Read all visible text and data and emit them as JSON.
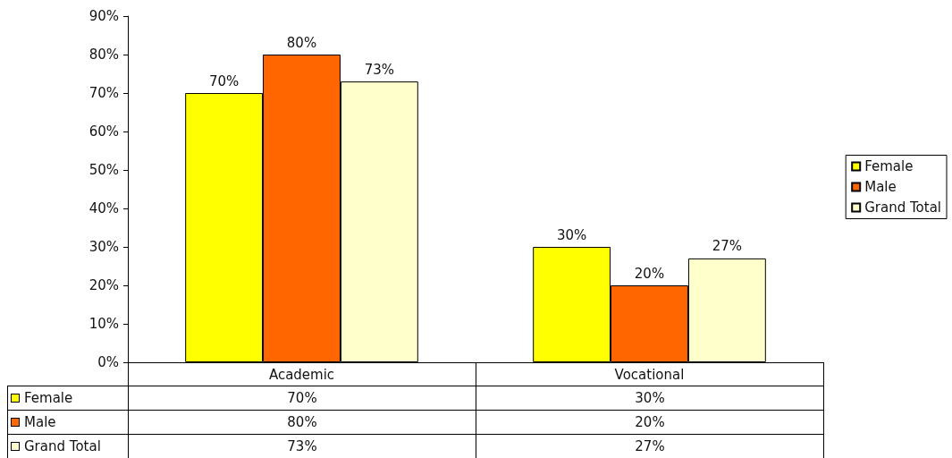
{
  "chart_data": {
    "type": "bar",
    "categories": [
      "Academic",
      "Vocational"
    ],
    "series": [
      {
        "name": "Female",
        "color": "#ffff00",
        "values": [
          70,
          30
        ],
        "value_labels": [
          "70%",
          "30%"
        ]
      },
      {
        "name": "Male",
        "color": "#ff6600",
        "values": [
          80,
          20
        ],
        "value_labels": [
          "80%",
          "20%"
        ]
      },
      {
        "name": "Grand Total",
        "color": "#ffffcc",
        "values": [
          73,
          27
        ],
        "value_labels": [
          "73%",
          "27%"
        ]
      }
    ],
    "ylim": [
      0,
      90
    ],
    "yticks": [
      {
        "value": 0,
        "label": "0%"
      },
      {
        "value": 10,
        "label": "10%"
      },
      {
        "value": 20,
        "label": "20%"
      },
      {
        "value": 30,
        "label": "30%"
      },
      {
        "value": 40,
        "label": "40%"
      },
      {
        "value": 50,
        "label": "50%"
      },
      {
        "value": 60,
        "label": "60%"
      },
      {
        "value": 70,
        "label": "70%"
      },
      {
        "value": 80,
        "label": "80%"
      },
      {
        "value": 90,
        "label": "90%"
      }
    ],
    "grid": false,
    "legend": "right"
  }
}
